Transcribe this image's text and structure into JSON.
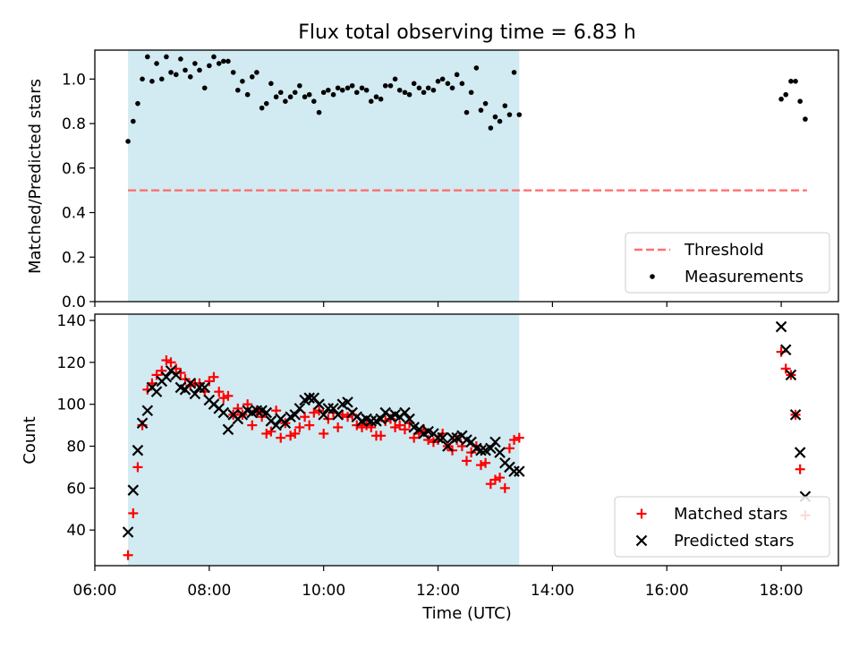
{
  "figure": {
    "title": "Flux total observing time = 6.83 h",
    "xlabel": "Time (UTC)",
    "x_ticks": [
      "06:00",
      "08:00",
      "10:00",
      "12:00",
      "14:00",
      "16:00",
      "18:00"
    ]
  },
  "chart_data": [
    {
      "type": "scatter",
      "panel": "top",
      "ylabel": "Matched/Predicted stars",
      "xlim": [
        6.0,
        19.0
      ],
      "ylim": [
        0.0,
        1.13
      ],
      "y_ticks": [
        "0.0",
        "0.2",
        "0.4",
        "0.6",
        "0.8",
        "1.0"
      ],
      "shaded_span": {
        "x": [
          6.58,
          13.42
        ],
        "color": "#add8e6"
      },
      "threshold_line": {
        "y": 0.5,
        "x": [
          6.58,
          18.45
        ],
        "color": "#ff7070",
        "style": "dashed"
      },
      "legend": {
        "placement": "lower-right",
        "entries": [
          "Threshold",
          "Measurements"
        ]
      },
      "series": [
        {
          "name": "Measurements",
          "marker": "dot",
          "color": "#000000",
          "x": [
            6.58,
            6.67,
            6.75,
            6.83,
            6.92,
            7.0,
            7.08,
            7.17,
            7.25,
            7.33,
            7.42,
            7.5,
            7.58,
            7.67,
            7.75,
            7.83,
            7.92,
            8.0,
            8.08,
            8.17,
            8.25,
            8.33,
            8.42,
            8.5,
            8.58,
            8.67,
            8.75,
            8.83,
            8.92,
            9.0,
            9.08,
            9.17,
            9.25,
            9.33,
            9.42,
            9.5,
            9.58,
            9.67,
            9.75,
            9.83,
            9.92,
            10.0,
            10.08,
            10.17,
            10.25,
            10.33,
            10.42,
            10.5,
            10.58,
            10.67,
            10.75,
            10.83,
            10.92,
            11.0,
            11.08,
            11.17,
            11.25,
            11.33,
            11.42,
            11.5,
            11.58,
            11.67,
            11.75,
            11.83,
            11.92,
            12.0,
            12.08,
            12.17,
            12.25,
            12.33,
            12.42,
            12.5,
            12.58,
            12.67,
            12.75,
            12.83,
            12.92,
            13.0,
            13.08,
            13.17,
            13.25,
            13.33,
            13.42,
            18.0,
            18.08,
            18.17,
            18.25,
            18.33,
            18.42
          ],
          "y": [
            0.72,
            0.81,
            0.89,
            1.0,
            1.1,
            0.99,
            1.07,
            1.0,
            1.1,
            1.03,
            1.02,
            1.09,
            1.04,
            1.01,
            1.07,
            1.04,
            0.96,
            1.06,
            1.1,
            1.07,
            1.08,
            1.08,
            1.03,
            0.95,
            0.99,
            0.93,
            1.01,
            1.03,
            0.87,
            0.89,
            0.98,
            0.92,
            0.94,
            0.9,
            0.92,
            0.94,
            0.97,
            0.92,
            0.93,
            0.9,
            0.85,
            0.94,
            0.95,
            0.93,
            0.96,
            0.95,
            0.96,
            0.97,
            0.94,
            0.96,
            0.95,
            0.9,
            0.92,
            0.91,
            0.97,
            0.97,
            1.0,
            0.95,
            0.94,
            0.93,
            0.98,
            0.96,
            0.94,
            0.96,
            0.95,
            0.99,
            1.0,
            0.98,
            0.96,
            1.02,
            0.98,
            0.85,
            0.94,
            1.05,
            0.86,
            0.89,
            0.78,
            0.83,
            0.81,
            0.88,
            0.84,
            1.03,
            0.84,
            0.91,
            0.93,
            0.99,
            0.99,
            0.9,
            0.82
          ]
        }
      ]
    },
    {
      "type": "scatter",
      "panel": "bottom",
      "ylabel": "Count",
      "xlim": [
        6.0,
        19.0
      ],
      "ylim": [
        23,
        143
      ],
      "y_ticks": [
        "40",
        "60",
        "80",
        "100",
        "120",
        "140"
      ],
      "shaded_span": {
        "x": [
          6.58,
          13.42
        ],
        "color": "#add8e6"
      },
      "legend": {
        "placement": "lower-right",
        "entries": [
          "Matched stars",
          "Predicted stars"
        ]
      },
      "series": [
        {
          "name": "Matched stars",
          "marker": "plus",
          "color": "#ff0000",
          "x": [
            6.58,
            6.67,
            6.75,
            6.83,
            6.92,
            7.0,
            7.08,
            7.17,
            7.25,
            7.33,
            7.42,
            7.5,
            7.58,
            7.67,
            7.75,
            7.83,
            7.92,
            8.0,
            8.08,
            8.17,
            8.25,
            8.33,
            8.42,
            8.5,
            8.58,
            8.67,
            8.75,
            8.83,
            8.92,
            9.0,
            9.08,
            9.17,
            9.25,
            9.33,
            9.42,
            9.5,
            9.58,
            9.67,
            9.75,
            9.83,
            9.92,
            10.0,
            10.08,
            10.17,
            10.25,
            10.33,
            10.42,
            10.5,
            10.58,
            10.67,
            10.75,
            10.83,
            10.92,
            11.0,
            11.08,
            11.17,
            11.25,
            11.33,
            11.42,
            11.5,
            11.58,
            11.67,
            11.75,
            11.83,
            11.92,
            12.0,
            12.08,
            12.17,
            12.25,
            12.33,
            12.42,
            12.5,
            12.58,
            12.67,
            12.75,
            12.83,
            12.92,
            13.0,
            13.08,
            13.17,
            13.25,
            13.33,
            13.42,
            18.0,
            18.08,
            18.17,
            18.25,
            18.33,
            18.42
          ],
          "y": [
            28,
            48,
            70,
            90,
            107,
            110,
            114,
            116,
            121,
            120,
            117,
            115,
            112,
            109,
            110,
            110,
            106,
            111,
            113,
            106,
            103,
            104,
            95,
            98,
            95,
            100,
            90,
            97,
            94,
            86,
            87,
            97,
            84,
            91,
            85,
            86,
            89,
            94,
            90,
            96,
            97,
            86,
            93,
            96,
            89,
            95,
            94,
            95,
            90,
            89,
            90,
            89,
            85,
            85,
            92,
            93,
            89,
            90,
            88,
            91,
            84,
            86,
            88,
            83,
            82,
            83,
            86,
            80,
            78,
            83,
            80,
            73,
            77,
            80,
            71,
            72,
            62,
            64,
            65,
            60,
            79,
            83,
            84,
            125,
            117,
            114,
            95,
            69,
            47
          ]
        },
        {
          "name": "Predicted stars",
          "marker": "cross",
          "color": "#000000",
          "x": [
            6.58,
            6.67,
            6.75,
            6.83,
            6.92,
            7.0,
            7.08,
            7.17,
            7.25,
            7.33,
            7.42,
            7.5,
            7.58,
            7.67,
            7.75,
            7.83,
            7.92,
            8.0,
            8.08,
            8.17,
            8.25,
            8.33,
            8.42,
            8.5,
            8.58,
            8.67,
            8.75,
            8.83,
            8.92,
            9.0,
            9.08,
            9.17,
            9.25,
            9.33,
            9.42,
            9.5,
            9.58,
            9.67,
            9.75,
            9.83,
            9.92,
            10.0,
            10.08,
            10.17,
            10.25,
            10.33,
            10.42,
            10.5,
            10.58,
            10.67,
            10.75,
            10.83,
            10.92,
            11.0,
            11.08,
            11.17,
            11.25,
            11.33,
            11.42,
            11.5,
            11.58,
            11.67,
            11.75,
            11.83,
            11.92,
            12.0,
            12.08,
            12.17,
            12.25,
            12.33,
            12.42,
            12.5,
            12.58,
            12.67,
            12.75,
            12.83,
            12.92,
            13.0,
            13.08,
            13.17,
            13.25,
            13.33,
            13.42,
            18.0,
            18.08,
            18.17,
            18.25,
            18.33,
            18.42
          ],
          "y": [
            39,
            59,
            78,
            91,
            97,
            108,
            106,
            111,
            113,
            116,
            114,
            108,
            107,
            110,
            105,
            108,
            108,
            102,
            100,
            98,
            96,
            88,
            95,
            93,
            95,
            97,
            96,
            97,
            97,
            96,
            92,
            90,
            93,
            91,
            94,
            95,
            98,
            102,
            103,
            103,
            100,
            95,
            98,
            98,
            95,
            100,
            101,
            96,
            94,
            92,
            93,
            92,
            92,
            93,
            96,
            94,
            95,
            94,
            96,
            93,
            89,
            88,
            86,
            87,
            86,
            84,
            84,
            80,
            84,
            84,
            85,
            83,
            82,
            79,
            78,
            78,
            79,
            82,
            77,
            72,
            70,
            68,
            68,
            137,
            126,
            114,
            95,
            77,
            56
          ]
        }
      ]
    }
  ]
}
